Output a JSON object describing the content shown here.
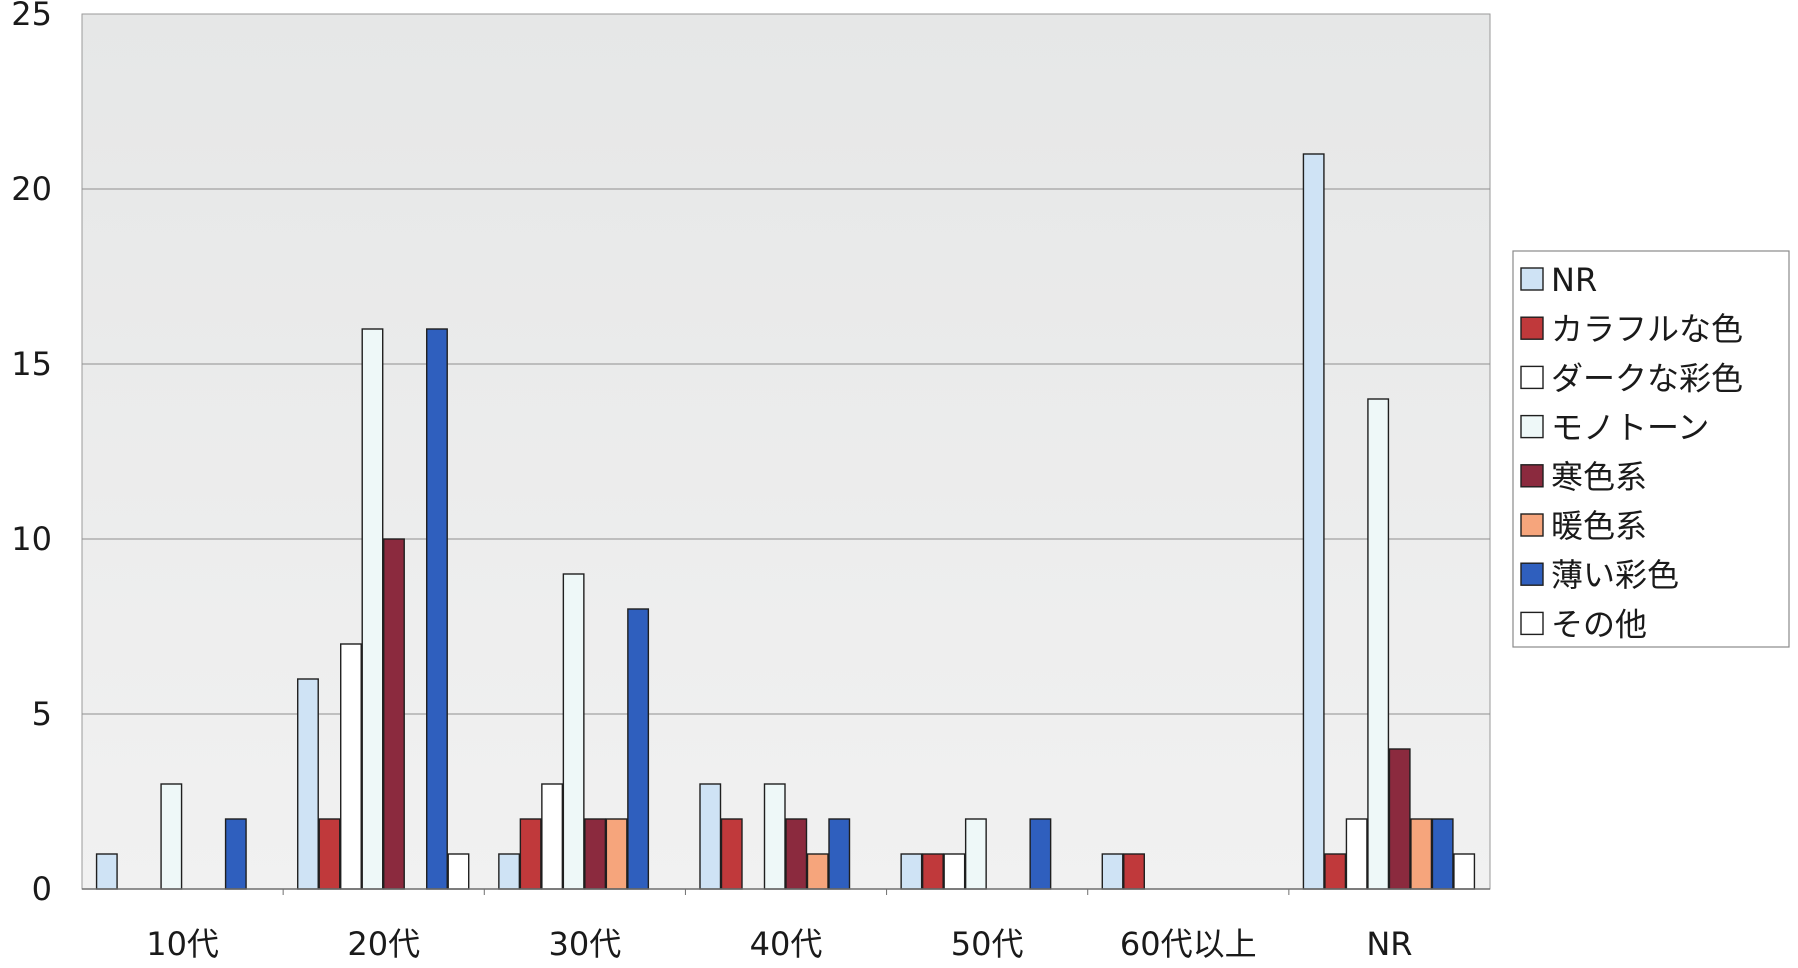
{
  "chart_data": {
    "type": "bar",
    "title": "",
    "xlabel": "",
    "ylabel": "",
    "ylim": [
      0,
      25
    ],
    "yticks": [
      0,
      5,
      10,
      15,
      20,
      25
    ],
    "grid": true,
    "legend_position": "right",
    "categories": [
      "10代",
      "20代",
      "30代",
      "40代",
      "50代",
      "60代以上",
      "NR"
    ],
    "series": [
      {
        "name": "NR",
        "color": "#cfe3f5",
        "values": [
          1,
          6,
          1,
          3,
          1,
          1,
          21
        ]
      },
      {
        "name": "カラフルな色",
        "color": "#c0393b",
        "values": [
          0,
          2,
          2,
          2,
          1,
          1,
          1
        ]
      },
      {
        "name": "ダークな彩色",
        "color": "#ffffff",
        "values": [
          0,
          7,
          3,
          0,
          1,
          0,
          2
        ]
      },
      {
        "name": "モノトーン",
        "color": "#eef8f8",
        "values": [
          3,
          16,
          9,
          3,
          2,
          0,
          14
        ]
      },
      {
        "name": "寒色系",
        "color": "#8b2a3e",
        "values": [
          0,
          10,
          2,
          2,
          0,
          0,
          4
        ]
      },
      {
        "name": "暖色系",
        "color": "#f6a57c",
        "values": [
          0,
          0,
          2,
          1,
          0,
          0,
          2
        ]
      },
      {
        "name": "薄い彩色",
        "color": "#2f5fbe",
        "values": [
          2,
          16,
          8,
          2,
          2,
          0,
          2
        ]
      },
      {
        "name": "その他",
        "color": "#ffffff",
        "values": [
          0,
          1,
          0,
          0,
          0,
          0,
          1
        ]
      }
    ]
  }
}
